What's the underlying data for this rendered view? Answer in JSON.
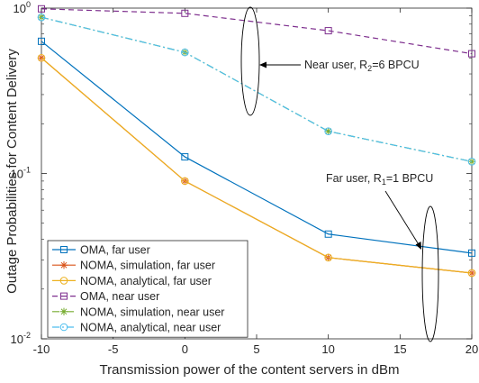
{
  "chart_data": {
    "type": "line",
    "xlabel": "Transmission power of the content servers in dBm",
    "ylabel": "Outage Probabilities for Content Delivery",
    "yscale": "log",
    "xlim": [
      -10,
      20
    ],
    "ylim": [
      0.01,
      1
    ],
    "x": [
      -10,
      0,
      10,
      20
    ],
    "x_ticks": [
      "-10",
      "-5",
      "0",
      "5",
      "10",
      "15",
      "20"
    ],
    "x_tick_values": [
      -10,
      -5,
      0,
      5,
      10,
      15,
      20
    ],
    "y_ticks": [
      {
        "value": 1,
        "base": "10",
        "exp": "0"
      },
      {
        "value": 0.1,
        "base": "10",
        "exp": "-1"
      },
      {
        "value": 0.01,
        "base": "10",
        "exp": "-2"
      }
    ],
    "grid": false,
    "legend_position": "bottom-left",
    "series": [
      {
        "name": "OMA, far user",
        "values": [
          0.63,
          0.126,
          0.043,
          0.033
        ],
        "color": "#0072bd",
        "dash": "solid",
        "marker": "square"
      },
      {
        "name": "NOMA, simulation, far user",
        "values": [
          0.5,
          0.09,
          0.031,
          0.025
        ],
        "color": "#d95319",
        "dash": "solid",
        "marker": "star"
      },
      {
        "name": "NOMA, analytical, far user",
        "values": [
          0.5,
          0.09,
          0.031,
          0.025
        ],
        "color": "#edb120",
        "dash": "solid",
        "marker": "circle"
      },
      {
        "name": "OMA, near user",
        "values": [
          0.99,
          0.93,
          0.73,
          0.53
        ],
        "color": "#7e2f8e",
        "dash": "dashed",
        "marker": "square"
      },
      {
        "name": "NOMA, simulation, near user",
        "values": [
          0.88,
          0.54,
          0.18,
          0.118
        ],
        "color": "#77ac30",
        "dash": "dashdot",
        "marker": "star"
      },
      {
        "name": "NOMA, analytical, near user",
        "values": [
          0.88,
          0.54,
          0.18,
          0.118
        ],
        "color": "#4dbeee",
        "dash": "dashdot",
        "marker": "circle"
      }
    ],
    "annotations": [
      {
        "id": "near",
        "text": "Near user, R",
        "sub": "2",
        "rest": "=6 BPCU"
      },
      {
        "id": "far",
        "text": "Far user, R",
        "sub": "1",
        "rest": "=1 BPCU"
      }
    ]
  }
}
